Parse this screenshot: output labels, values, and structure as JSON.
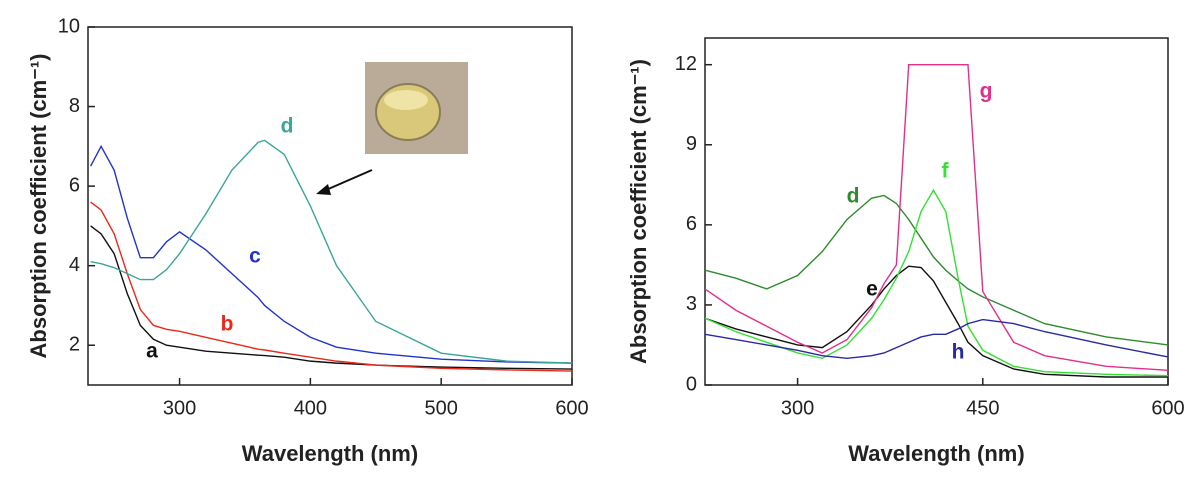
{
  "chart_data": [
    {
      "type": "line",
      "x_label": "Wavelength (nm)",
      "y_label": "Absorption coefficient (cm⁻¹)",
      "xlim": [
        230,
        600
      ],
      "xticks": [
        300,
        400,
        500,
        600
      ],
      "ylim": [
        1,
        10
      ],
      "yticks": [
        2,
        4,
        6,
        8,
        10
      ],
      "x": [
        232,
        240,
        250,
        260,
        270,
        280,
        290,
        300,
        320,
        340,
        360,
        365,
        380,
        400,
        420,
        450,
        500,
        550,
        600
      ],
      "series": [
        {
          "name": "a",
          "color": "#111111",
          "values": [
            5.0,
            4.8,
            4.3,
            3.3,
            2.5,
            2.15,
            2.0,
            1.95,
            1.85,
            1.8,
            1.75,
            1.74,
            1.7,
            1.6,
            1.55,
            1.5,
            1.45,
            1.42,
            1.4
          ]
        },
        {
          "name": "b",
          "color": "#e8291c",
          "values": [
            5.6,
            5.4,
            4.8,
            3.8,
            2.9,
            2.5,
            2.4,
            2.35,
            2.2,
            2.05,
            1.9,
            1.88,
            1.8,
            1.7,
            1.6,
            1.5,
            1.42,
            1.38,
            1.35
          ]
        },
        {
          "name": "c",
          "color": "#2233cc",
          "values": [
            6.5,
            7.0,
            6.4,
            5.2,
            4.2,
            4.2,
            4.6,
            4.85,
            4.4,
            3.8,
            3.2,
            3.0,
            2.6,
            2.2,
            1.95,
            1.8,
            1.65,
            1.58,
            1.55
          ]
        },
        {
          "name": "d",
          "color": "#3aa59a",
          "values": [
            4.1,
            4.05,
            3.95,
            3.8,
            3.65,
            3.65,
            3.9,
            4.3,
            5.3,
            6.4,
            7.1,
            7.15,
            6.8,
            5.5,
            4.0,
            2.6,
            1.8,
            1.6,
            1.55
          ]
        }
      ]
    },
    {
      "type": "line",
      "x_label": "Wavelength (nm)",
      "y_label": "Absorption coefficient (cm⁻¹)",
      "xlim": [
        225,
        600
      ],
      "xticks": [
        300,
        450,
        600
      ],
      "ylim": [
        0,
        13
      ],
      "yticks": [
        0,
        3,
        6,
        9,
        12
      ],
      "x": [
        225,
        250,
        275,
        300,
        320,
        340,
        360,
        370,
        380,
        390,
        400,
        410,
        420,
        430,
        438,
        450,
        475,
        500,
        550,
        600
      ],
      "series": [
        {
          "name": "d",
          "color": "#2e8b2e",
          "values": [
            4.3,
            4.0,
            3.6,
            4.1,
            5.0,
            6.2,
            7.0,
            7.1,
            6.8,
            6.2,
            5.5,
            4.8,
            4.3,
            3.9,
            3.6,
            3.3,
            2.8,
            2.3,
            1.8,
            1.5
          ]
        },
        {
          "name": "e",
          "color": "#111111",
          "values": [
            2.5,
            2.1,
            1.8,
            1.5,
            1.4,
            2.0,
            3.0,
            3.6,
            4.1,
            4.45,
            4.4,
            3.9,
            3.1,
            2.3,
            1.6,
            1.1,
            0.6,
            0.4,
            0.3,
            0.3
          ]
        },
        {
          "name": "f",
          "color": "#33e033",
          "values": [
            2.5,
            2.0,
            1.6,
            1.2,
            1.0,
            1.5,
            2.5,
            3.2,
            4.0,
            5.0,
            6.5,
            7.3,
            6.5,
            4.0,
            2.2,
            1.3,
            0.7,
            0.5,
            0.4,
            0.35
          ]
        },
        {
          "name": "g",
          "color": "#e0308a",
          "values": [
            3.6,
            2.8,
            2.2,
            1.6,
            1.2,
            1.7,
            2.9,
            3.8,
            4.5,
            12,
            12,
            12,
            12,
            12,
            12,
            3.5,
            1.6,
            1.1,
            0.7,
            0.55
          ]
        },
        {
          "name": "h",
          "color": "#2a2aa0",
          "values": [
            1.9,
            1.7,
            1.5,
            1.3,
            1.1,
            1.0,
            1.1,
            1.2,
            1.4,
            1.6,
            1.8,
            1.9,
            1.9,
            2.1,
            2.3,
            2.45,
            2.3,
            2.0,
            1.5,
            1.05
          ]
        }
      ]
    }
  ]
}
